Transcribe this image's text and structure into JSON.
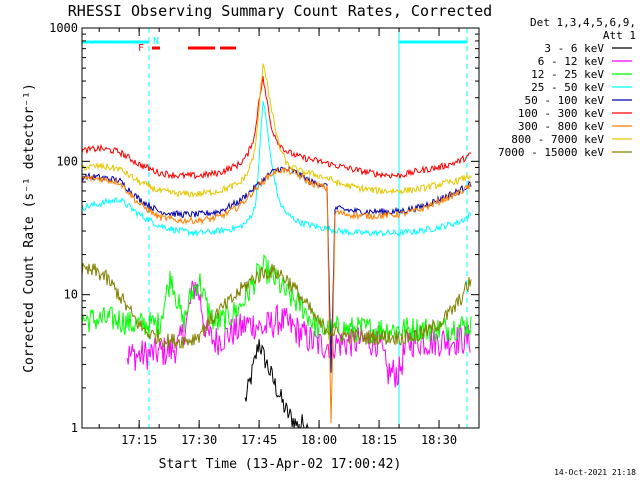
{
  "chart_data": {
    "type": "line",
    "title": "RHESSI Observing Summary Count Rates, Corrected",
    "xlabel": "Start Time (13-Apr-02 17:00:42)",
    "ylabel": "Corrected Count Rate (s⁻¹ detector⁻¹)",
    "y_scale": "log",
    "ylim": [
      1,
      1000
    ],
    "xlim": [
      "17:00:42",
      "18:40:00"
    ],
    "x_ticks": [
      "17:15",
      "17:30",
      "17:45",
      "18:00",
      "18:15",
      "18:30"
    ],
    "y_ticks": [
      "1",
      "10",
      "100",
      "1000"
    ],
    "legend": {
      "header1": "Det 1,3,4,5,6,9,",
      "header2": "Att 1",
      "placement": "right"
    },
    "timestamp": "14-Oct-2021 21:18",
    "flags": {
      "F": "F",
      "N": "N"
    },
    "flag_colors": {
      "F": "#ff0000",
      "N": "#00ffff"
    },
    "series": [
      {
        "name": "3 - 6 keV",
        "color": "#000000",
        "x": [
          "17:41:30",
          "17:42",
          "17:42:30",
          "17:43",
          "17:43:30",
          "17:44",
          "17:44:30",
          "17:45",
          "17:46",
          "17:47",
          "17:48",
          "17:49",
          "17:50",
          "17:51",
          "17:52",
          "17:53",
          "17:54",
          "17:55",
          "17:56",
          "17:57",
          "17:58"
        ],
        "y": [
          1.6,
          1.8,
          2.1,
          2.4,
          2.8,
          3.2,
          3.8,
          4.5,
          3.5,
          3.0,
          2.5,
          2.1,
          1.8,
          1.5,
          1.3,
          1.2,
          1.1,
          1.0,
          1.1,
          1.0,
          1.0
        ]
      },
      {
        "name": "6 - 12 keV",
        "color": "#ff00ff",
        "x": [
          "17:12",
          "17:15",
          "17:18",
          "17:20",
          "17:23",
          "17:25",
          "17:27",
          "17:28",
          "17:29",
          "17:30",
          "17:31",
          "17:32",
          "17:34",
          "17:36",
          "17:38",
          "17:40",
          "17:42",
          "17:44",
          "17:46",
          "17:48",
          "17:50",
          "17:52",
          "17:54",
          "17:56",
          "17:58",
          "18:00",
          "18:05",
          "18:10",
          "18:15",
          "18:17",
          "18:20",
          "18:22",
          "18:25",
          "18:30",
          "18:35",
          "18:38"
        ],
        "y": [
          3.5,
          3.5,
          3.6,
          3.7,
          3.8,
          4.2,
          6.5,
          9.5,
          12,
          10,
          7,
          5,
          4.5,
          4.8,
          5.2,
          5.5,
          6,
          6,
          5.5,
          6,
          6.5,
          6,
          5.5,
          5,
          4.5,
          4.2,
          4.3,
          4.5,
          4.5,
          2.6,
          2.6,
          4.4,
          4.5,
          4.5,
          4.6,
          4.6
        ]
      },
      {
        "name": "12 - 25 keV",
        "color": "#00ff00",
        "x": [
          "17:00:42",
          "17:05",
          "17:10",
          "17:13",
          "17:15",
          "17:20",
          "17:23",
          "17:25",
          "17:26",
          "17:28",
          "17:30",
          "17:32",
          "17:34",
          "17:36",
          "17:38",
          "17:40",
          "17:42",
          "17:44",
          "17:46",
          "17:48",
          "17:50",
          "17:52",
          "17:54",
          "17:56",
          "17:58",
          "18:00",
          "18:05",
          "18:10",
          "18:15",
          "18:20",
          "18:25",
          "18:30",
          "18:35",
          "18:38"
        ],
        "y": [
          6.5,
          6.5,
          6.5,
          6,
          6,
          6,
          14,
          8,
          6,
          10,
          13,
          8,
          6,
          6.5,
          7,
          8,
          10,
          13,
          16,
          14,
          12,
          10,
          9,
          8,
          6.5,
          5.5,
          5.5,
          5.5,
          5.5,
          5.5,
          5.5,
          5.5,
          5.8,
          6
        ]
      },
      {
        "name": "25 - 50 keV",
        "color": "#00ffff",
        "x": [
          "17:00:42",
          "17:05",
          "17:10",
          "17:15",
          "17:20",
          "17:25",
          "17:30",
          "17:35",
          "17:40",
          "17:42",
          "17:44",
          "17:45",
          "17:46",
          "17:47",
          "17:48",
          "17:49",
          "17:50",
          "17:52",
          "17:55",
          "18:00",
          "18:03",
          "18:05",
          "18:10",
          "18:15",
          "18:20",
          "18:25",
          "18:30",
          "18:35",
          "18:38"
        ],
        "y": [
          45,
          48,
          52,
          40,
          33,
          30,
          29,
          30,
          32,
          35,
          45,
          100,
          300,
          180,
          100,
          70,
          50,
          40,
          35,
          32,
          31,
          30,
          29,
          29,
          29,
          30,
          32,
          35,
          40
        ]
      },
      {
        "name": "50 - 100 keV",
        "color": "#0000aa",
        "x": [
          "17:00:42",
          "17:05",
          "17:10",
          "17:15",
          "17:20",
          "17:25",
          "17:30",
          "17:35",
          "17:40",
          "17:45",
          "17:48",
          "17:50",
          "17:53",
          "17:55",
          "17:58",
          "18:00",
          "18:02",
          "18:03",
          "18:04",
          "18:05",
          "18:10",
          "18:15",
          "18:20",
          "18:25",
          "18:30",
          "18:35",
          "18:38"
        ],
        "y": [
          77,
          76,
          72,
          52,
          42,
          40,
          40,
          42,
          50,
          68,
          82,
          88,
          86,
          80,
          70,
          68,
          65,
          2.5,
          45,
          44,
          42,
          42,
          42,
          45,
          52,
          60,
          68
        ]
      },
      {
        "name": "100 - 300 keV",
        "color": "#ff0000",
        "x": [
          "17:00:42",
          "17:05",
          "17:10",
          "17:15",
          "17:20",
          "17:25",
          "17:30",
          "17:35",
          "17:40",
          "17:42",
          "17:44",
          "17:45",
          "17:46",
          "17:47",
          "17:48",
          "17:50",
          "17:52",
          "17:55",
          "18:00",
          "18:03",
          "18:05",
          "18:10",
          "18:15",
          "18:20",
          "18:25",
          "18:30",
          "18:35",
          "18:38"
        ],
        "y": [
          120,
          125,
          118,
          95,
          82,
          78,
          78,
          82,
          95,
          110,
          160,
          300,
          420,
          280,
          180,
          135,
          118,
          108,
          100,
          95,
          92,
          85,
          80,
          78,
          85,
          90,
          100,
          112
        ]
      },
      {
        "name": "300 - 800 keV",
        "color": "#ff8000",
        "x": [
          "17:00:42",
          "17:05",
          "17:10",
          "17:15",
          "17:20",
          "17:25",
          "17:30",
          "17:35",
          "17:40",
          "17:45",
          "17:48",
          "17:50",
          "17:53",
          "17:55",
          "17:58",
          "18:00",
          "18:02",
          "18:03",
          "18:04",
          "18:05",
          "18:10",
          "18:15",
          "18:20",
          "18:25",
          "18:30",
          "18:35",
          "18:38"
        ],
        "y": [
          75,
          74,
          70,
          48,
          38,
          36,
          36,
          38,
          46,
          66,
          80,
          86,
          84,
          78,
          68,
          66,
          62,
          1.0,
          42,
          41,
          39,
          39,
          40,
          43,
          50,
          58,
          66
        ]
      },
      {
        "name": "800 - 7000 keV",
        "color": "#e6c800",
        "x": [
          "17:00:42",
          "17:05",
          "17:10",
          "17:15",
          "17:20",
          "17:25",
          "17:30",
          "17:35",
          "17:40",
          "17:42",
          "17:44",
          "17:45",
          "17:46",
          "17:47",
          "17:48",
          "17:50",
          "17:52",
          "17:55",
          "18:00",
          "18:03",
          "18:05",
          "18:10",
          "18:15",
          "18:20",
          "18:25",
          "18:30",
          "18:35",
          "18:38"
        ],
        "y": [
          90,
          92,
          88,
          70,
          60,
          57,
          57,
          60,
          68,
          80,
          120,
          250,
          560,
          400,
          250,
          130,
          95,
          85,
          78,
          73,
          68,
          63,
          60,
          60,
          62,
          67,
          72,
          78
        ]
      },
      {
        "name": "7000 - 15000 keV",
        "color": "#808000",
        "x": [
          "17:00:42",
          "17:04",
          "17:06",
          "17:08",
          "17:10",
          "17:12",
          "17:14",
          "17:16",
          "17:18",
          "17:20",
          "17:22",
          "17:25",
          "17:28",
          "17:30",
          "17:32",
          "17:35",
          "17:38",
          "17:40",
          "17:42",
          "17:44",
          "17:46",
          "17:48",
          "17:50",
          "17:52",
          "17:54",
          "17:56",
          "17:58",
          "18:00",
          "18:05",
          "18:10",
          "18:15",
          "18:18",
          "18:20",
          "18:22",
          "18:25",
          "18:28",
          "18:31",
          "18:34",
          "18:36",
          "18:38"
        ],
        "y": [
          15,
          15,
          14,
          12,
          10,
          8,
          6.5,
          5.5,
          5,
          4.8,
          4.5,
          4.5,
          4.6,
          5,
          6,
          7.5,
          9,
          10.5,
          12,
          13.5,
          14.5,
          15,
          14.5,
          13,
          11,
          9,
          7.5,
          6,
          5,
          4.8,
          4.8,
          4.8,
          4.8,
          4.8,
          5,
          5.5,
          6.5,
          8,
          10,
          13
        ]
      }
    ]
  }
}
